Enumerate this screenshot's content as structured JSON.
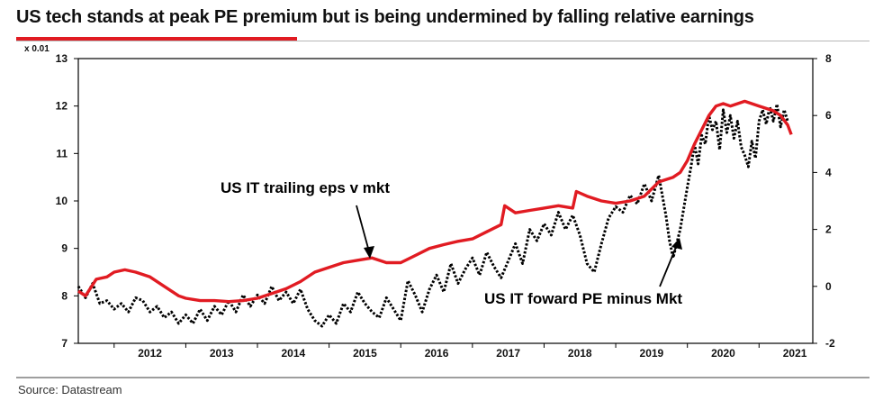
{
  "title": "US tech stands at peak PE premium but is being undermined by falling relative earnings",
  "source": "Source: Datastream",
  "colors": {
    "red": "#e11b22",
    "black": "#000000"
  },
  "chart_data": {
    "type": "line",
    "left_axis": {
      "ylim": [
        7,
        13
      ],
      "ticks": [
        "7",
        "8",
        "9",
        "10",
        "11",
        "12",
        "13"
      ],
      "scale_label": "x 0.01"
    },
    "right_axis": {
      "ylim": [
        -2,
        8
      ],
      "ticks": [
        "-2",
        "0",
        "2",
        "4",
        "6",
        "8"
      ]
    },
    "x_range": [
      2011.5,
      2021.75
    ],
    "x_ticks": [
      "2012",
      "2013",
      "2014",
      "2015",
      "2016",
      "2017",
      "2018",
      "2019",
      "2020",
      "2021"
    ],
    "series": [
      {
        "name": "US IT trailing eps v mkt",
        "axis": "left",
        "style": "solid",
        "color": "#e11b22",
        "x": [
          2011.5,
          2011.6,
          2011.75,
          2011.9,
          2012.0,
          2012.15,
          2012.3,
          2012.5,
          2012.7,
          2012.9,
          2013.0,
          2013.2,
          2013.4,
          2013.6,
          2013.8,
          2014.0,
          2014.2,
          2014.4,
          2014.6,
          2014.8,
          2015.0,
          2015.2,
          2015.4,
          2015.6,
          2015.8,
          2016.0,
          2016.2,
          2016.4,
          2016.6,
          2016.8,
          2017.0,
          2017.2,
          2017.4,
          2017.45,
          2017.6,
          2017.8,
          2018.0,
          2018.2,
          2018.4,
          2018.45,
          2018.6,
          2018.8,
          2019.0,
          2019.2,
          2019.4,
          2019.6,
          2019.8,
          2019.9,
          2020.0,
          2020.1,
          2020.2,
          2020.3,
          2020.4,
          2020.5,
          2020.6,
          2020.8,
          2021.0,
          2021.2,
          2021.3,
          2021.4,
          2021.45
        ],
        "values": [
          8.1,
          8.0,
          8.35,
          8.4,
          8.5,
          8.55,
          8.5,
          8.4,
          8.2,
          8.0,
          7.95,
          7.9,
          7.9,
          7.88,
          7.9,
          7.95,
          8.05,
          8.15,
          8.3,
          8.5,
          8.6,
          8.7,
          8.75,
          8.8,
          8.7,
          8.7,
          8.85,
          9.0,
          9.08,
          9.15,
          9.2,
          9.35,
          9.5,
          9.9,
          9.75,
          9.8,
          9.85,
          9.9,
          9.85,
          10.2,
          10.1,
          10.0,
          9.95,
          10.0,
          10.1,
          10.4,
          10.5,
          10.6,
          10.85,
          11.2,
          11.5,
          11.8,
          12.0,
          12.05,
          12.0,
          12.1,
          12.0,
          11.9,
          11.8,
          11.6,
          11.4
        ]
      },
      {
        "name": "US IT foward PE minus Mkt",
        "axis": "right",
        "style": "dotted",
        "color": "#000000",
        "x": [
          2011.5,
          2011.6,
          2011.7,
          2011.8,
          2011.9,
          2012.0,
          2012.1,
          2012.2,
          2012.3,
          2012.4,
          2012.5,
          2012.6,
          2012.7,
          2012.8,
          2012.9,
          2013.0,
          2013.1,
          2013.2,
          2013.3,
          2013.4,
          2013.5,
          2013.6,
          2013.7,
          2013.8,
          2013.9,
          2014.0,
          2014.1,
          2014.2,
          2014.3,
          2014.4,
          2014.5,
          2014.6,
          2014.7,
          2014.8,
          2014.9,
          2015.0,
          2015.1,
          2015.2,
          2015.3,
          2015.4,
          2015.5,
          2015.6,
          2015.7,
          2015.8,
          2015.9,
          2016.0,
          2016.1,
          2016.2,
          2016.3,
          2016.4,
          2016.5,
          2016.6,
          2016.7,
          2016.8,
          2016.9,
          2017.0,
          2017.1,
          2017.2,
          2017.3,
          2017.4,
          2017.5,
          2017.6,
          2017.7,
          2017.8,
          2017.9,
          2018.0,
          2018.1,
          2018.2,
          2018.3,
          2018.4,
          2018.5,
          2018.6,
          2018.7,
          2018.8,
          2018.9,
          2019.0,
          2019.1,
          2019.2,
          2019.3,
          2019.4,
          2019.5,
          2019.6,
          2019.7,
          2019.75,
          2019.8,
          2019.9,
          2020.0,
          2020.05,
          2020.1,
          2020.15,
          2020.2,
          2020.25,
          2020.3,
          2020.35,
          2020.4,
          2020.45,
          2020.5,
          2020.55,
          2020.6,
          2020.65,
          2020.7,
          2020.75,
          2020.8,
          2020.85,
          2020.9,
          2020.95,
          2021.0,
          2021.05,
          2021.1,
          2021.15,
          2021.2,
          2021.25,
          2021.3,
          2021.35,
          2021.4
        ],
        "values": [
          0.0,
          -0.4,
          0.1,
          -0.6,
          -0.5,
          -0.8,
          -0.6,
          -0.9,
          -0.4,
          -0.5,
          -0.9,
          -0.7,
          -1.1,
          -0.9,
          -1.3,
          -1.0,
          -1.3,
          -0.8,
          -1.2,
          -0.7,
          -1.0,
          -0.5,
          -0.9,
          -0.3,
          -0.7,
          -0.3,
          -0.6,
          0.0,
          -0.5,
          -0.2,
          -0.6,
          -0.1,
          -0.8,
          -1.2,
          -1.4,
          -1.0,
          -1.3,
          -0.6,
          -0.9,
          -0.2,
          -0.6,
          -0.9,
          -1.1,
          -0.4,
          -0.8,
          -1.2,
          0.2,
          -0.3,
          -0.9,
          -0.1,
          0.4,
          -0.2,
          0.8,
          0.1,
          0.6,
          1.0,
          0.4,
          1.2,
          0.7,
          0.3,
          0.9,
          1.5,
          0.8,
          2.0,
          1.6,
          2.2,
          1.8,
          2.6,
          2.0,
          2.5,
          1.8,
          0.8,
          0.5,
          1.5,
          2.4,
          2.8,
          2.6,
          3.2,
          2.9,
          3.6,
          3.0,
          3.9,
          2.5,
          1.6,
          1.0,
          2.0,
          3.5,
          4.2,
          5.0,
          4.3,
          5.3,
          5.0,
          6.0,
          5.5,
          5.8,
          4.8,
          6.2,
          5.4,
          6.0,
          5.2,
          5.8,
          4.9,
          4.6,
          4.2,
          5.1,
          4.5,
          5.8,
          6.2,
          5.7,
          6.3,
          5.8,
          6.4,
          5.6,
          6.2,
          5.8
        ]
      }
    ],
    "annotations": [
      {
        "text": "US IT trailing eps v mkt",
        "points_to": "US IT trailing eps v mkt"
      },
      {
        "text": "US IT foward  PE minus Mkt",
        "points_to": "US IT foward PE minus Mkt"
      }
    ]
  }
}
